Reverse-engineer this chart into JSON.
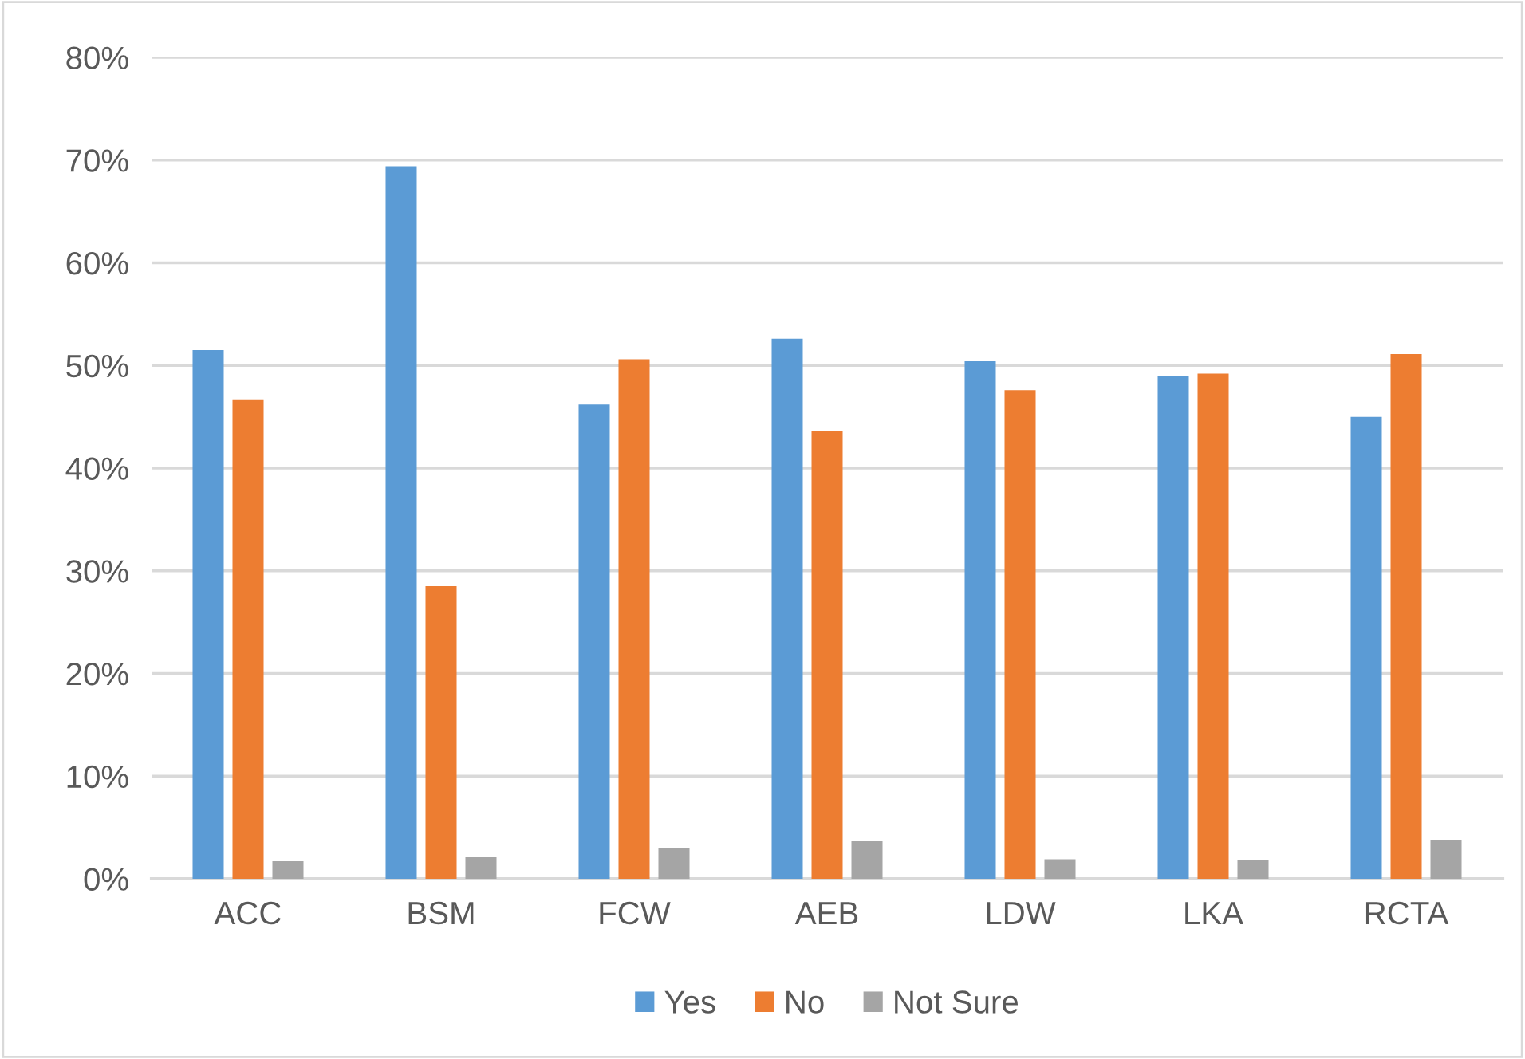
{
  "chart_data": {
    "type": "bar",
    "categories": [
      "ACC",
      "BSM",
      "FCW",
      "AEB",
      "LDW",
      "LKA",
      "RCTA"
    ],
    "series": [
      {
        "name": "Yes",
        "color": "#5b9bd5",
        "values": [
          51.5,
          69.4,
          46.2,
          52.6,
          50.4,
          49.0,
          45.0
        ]
      },
      {
        "name": "No",
        "color": "#ed7d31",
        "values": [
          46.7,
          28.5,
          50.6,
          43.6,
          47.6,
          49.2,
          51.1
        ]
      },
      {
        "name": "Not Sure",
        "color": "#a5a5a5",
        "values": [
          1.7,
          2.1,
          3.0,
          3.7,
          1.9,
          1.8,
          3.8
        ]
      }
    ],
    "ylim": [
      0,
      80
    ],
    "yticks": [
      {
        "value": 0,
        "label": "0%"
      },
      {
        "value": 10,
        "label": "10%"
      },
      {
        "value": 20,
        "label": "20%"
      },
      {
        "value": 30,
        "label": "30%"
      },
      {
        "value": 40,
        "label": "40%"
      },
      {
        "value": 50,
        "label": "50%"
      },
      {
        "value": 60,
        "label": "60%"
      },
      {
        "value": 70,
        "label": "70%"
      },
      {
        "value": 80,
        "label": "80%"
      }
    ],
    "grid": "y",
    "legend": "bottom"
  }
}
